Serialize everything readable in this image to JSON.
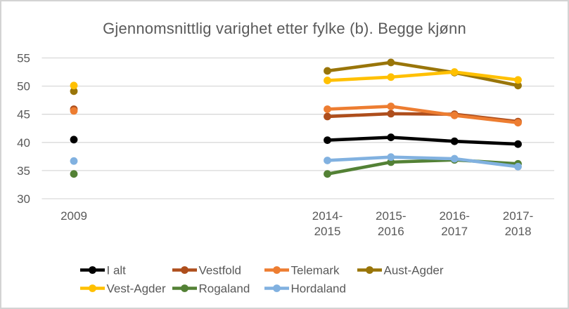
{
  "title": {
    "text": "Gjennomsnittlig varighet etter fylke (b). Begge kjønn"
  },
  "colors": {
    "text": "#595959",
    "gridline": "#d9d9d9",
    "border": "#d3d3d3",
    "background": "#ffffff"
  },
  "x_axis": {
    "tick_lines": [
      [
        "2009"
      ],
      [
        "2014-",
        "2015"
      ],
      [
        "2015-",
        "2016"
      ],
      [
        "2016-",
        "2017"
      ],
      [
        "2017-",
        "2018"
      ]
    ]
  },
  "chart_data": {
    "type": "line",
    "title": "Gjennomsnittlig varighet etter fylke (b). Begge kjønn",
    "categories": [
      "2009",
      "2014-2015",
      "2015-2016",
      "2016-2017",
      "2017-2018"
    ],
    "series": [
      {
        "name": "I alt",
        "color": "#000000",
        "values": [
          40.5,
          40.4,
          40.9,
          40.2,
          39.7
        ]
      },
      {
        "name": "Vestfold",
        "color": "#AE4E1C",
        "values": [
          45.9,
          44.6,
          45.1,
          45.0,
          43.7
        ]
      },
      {
        "name": "Telemark",
        "color": "#ED7D31",
        "values": [
          45.6,
          45.9,
          46.4,
          44.8,
          43.5
        ]
      },
      {
        "name": "Aust-Agder",
        "color": "#997509",
        "values": [
          49.1,
          52.7,
          54.2,
          52.4,
          50.1
        ]
      },
      {
        "name": "Vest-Agder",
        "color": "#FFC000",
        "values": [
          50.1,
          51.0,
          51.6,
          52.5,
          51.1
        ]
      },
      {
        "name": "Rogaland",
        "color": "#538135",
        "values": [
          34.4,
          34.4,
          36.5,
          36.9,
          36.2
        ]
      },
      {
        "name": "Hordaland",
        "color": "#81B1E0",
        "values": [
          36.7,
          36.8,
          37.4,
          37.1,
          35.7
        ]
      }
    ],
    "y_ticks": [
      55,
      50,
      45,
      40,
      35,
      30
    ],
    "ylim": [
      30,
      55
    ],
    "grid": "horizontal",
    "legend_position": "bottom",
    "first_category_isolated": true,
    "markers": "circle"
  }
}
